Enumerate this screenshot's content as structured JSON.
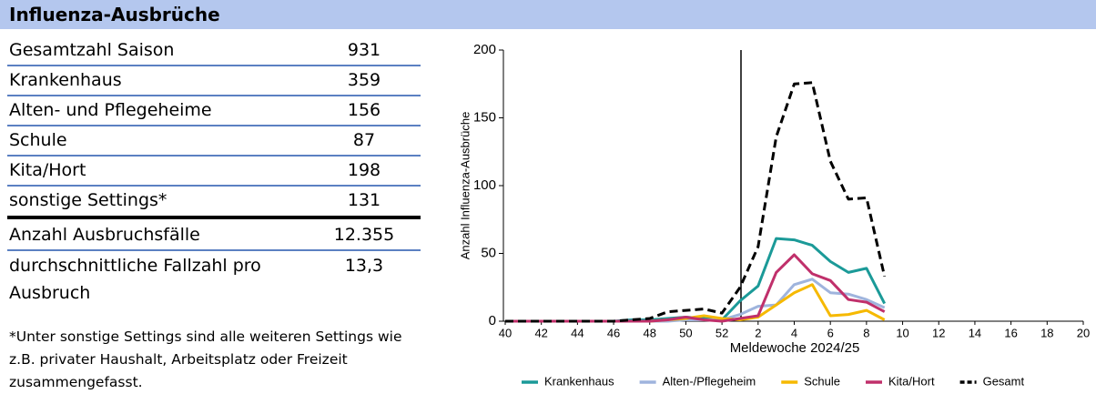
{
  "header": {
    "title": "Influenza-Ausbrüche"
  },
  "table": {
    "rows": [
      [
        "Gesamtzahl Saison",
        "931"
      ],
      [
        "Krankenhaus",
        "359"
      ],
      [
        "Alten- und Pflegeheime",
        "156"
      ],
      [
        "Schule",
        "87"
      ],
      [
        "Kita/Hort",
        "198"
      ],
      [
        "sonstige Settings*",
        "131"
      ],
      [
        "Anzahl Ausbruchsfälle",
        "12.355"
      ],
      [
        "durchschnittliche Fallzahl pro Ausbruch",
        "13,3"
      ]
    ]
  },
  "footnote": "*Unter sonstige Settings sind alle weiteren Settings wie z.B. privater Haushalt, Arbeitsplatz oder Freizeit zusammengefasst.",
  "chart_data": {
    "type": "line",
    "x_label": "Meldewoche 2024/25",
    "y_label": "Anzahl Influenza-Ausbrüche",
    "categories": [
      "40",
      null,
      "42",
      null,
      "44",
      null,
      "46",
      null,
      "48",
      null,
      "50",
      null,
      "52",
      null,
      "2",
      null,
      "4",
      null,
      "6",
      null,
      "8",
      null,
      "10",
      null,
      "12",
      null,
      "14",
      null,
      "16",
      null,
      "18",
      null,
      "20"
    ],
    "ylim": [
      0,
      200
    ],
    "yticks": [
      0,
      50,
      100,
      150,
      200
    ],
    "grid": false,
    "legend": "bottom",
    "series": [
      {
        "name": "Krankenhaus",
        "color": "#1b9a98",
        "line_style": "solid",
        "values": [
          0,
          0,
          0,
          0,
          0,
          0,
          0,
          1,
          1,
          2,
          3,
          2,
          1,
          15,
          26,
          61,
          60,
          56,
          44,
          36,
          39,
          13,
          null,
          null,
          null,
          null,
          null,
          null,
          null,
          null,
          null,
          null,
          null
        ]
      },
      {
        "name": "Alten-/Pflegeheim",
        "color": "#9fb4dd",
        "line_style": "solid",
        "values": [
          0,
          0,
          0,
          0,
          0,
          0,
          0,
          0,
          0,
          0,
          1,
          1,
          1,
          5,
          11,
          12,
          27,
          31,
          21,
          20,
          16,
          10,
          null,
          null,
          null,
          null,
          null,
          null,
          null,
          null,
          null,
          null,
          null
        ]
      },
      {
        "name": "Schule",
        "color": "#f6b900",
        "line_style": "solid",
        "values": [
          0,
          0,
          0,
          0,
          0,
          0,
          0,
          0,
          0,
          1,
          2,
          4,
          2,
          1,
          3,
          12,
          21,
          27,
          4,
          5,
          8,
          1,
          null,
          null,
          null,
          null,
          null,
          null,
          null,
          null,
          null,
          null,
          null
        ]
      },
      {
        "name": "Kita/Hort",
        "color": "#c0306b",
        "line_style": "solid",
        "values": [
          0,
          0,
          0,
          0,
          0,
          0,
          0,
          0,
          0,
          1,
          3,
          1,
          0,
          2,
          4,
          36,
          49,
          35,
          30,
          16,
          14,
          7,
          null,
          null,
          null,
          null,
          null,
          null,
          null,
          null,
          null,
          null,
          null
        ]
      },
      {
        "name": "Gesamt",
        "color": "#000000",
        "line_style": "dashed",
        "values": [
          0,
          0,
          0,
          0,
          0,
          0,
          0,
          1,
          2,
          7,
          8,
          9,
          6,
          25,
          55,
          136,
          175,
          176,
          118,
          90,
          91,
          33,
          null,
          null,
          null,
          null,
          null,
          null,
          null,
          null,
          null,
          null,
          null
        ]
      }
    ]
  }
}
